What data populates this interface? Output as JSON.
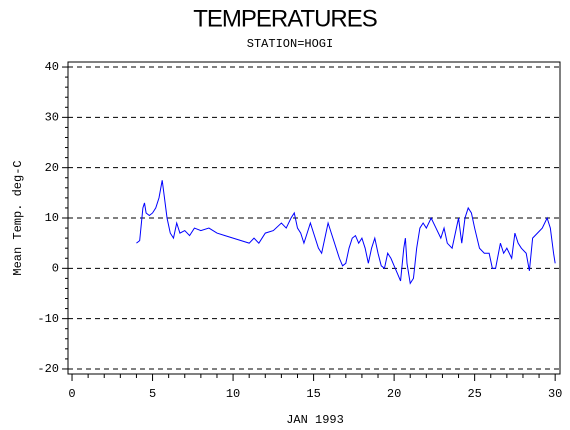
{
  "chart_data": {
    "type": "line",
    "title": "TEMPERATURES",
    "subtitle": "STATION=HOGI",
    "x_label": "JAN 1993",
    "y_label": "Mean Temp. deg-C",
    "xlim": [
      -0.25,
      30.3
    ],
    "ylim": [
      -21,
      41
    ],
    "xticks": [
      0,
      5,
      10,
      15,
      20,
      25,
      30
    ],
    "yticks": [
      -20,
      -10,
      0,
      10,
      20,
      30,
      40
    ],
    "xminorticks": [
      1,
      2,
      3,
      4,
      6,
      7,
      8,
      9,
      11,
      12,
      13,
      14,
      16,
      17,
      18,
      19,
      21,
      22,
      23,
      24,
      26,
      27,
      28,
      29
    ],
    "yminorticks": [
      -18,
      -16,
      -14,
      -12,
      -8,
      -6,
      -4,
      -2,
      2,
      4,
      6,
      8,
      12,
      14,
      16,
      18,
      22,
      24,
      26,
      28,
      32,
      34,
      36,
      38
    ],
    "grid": true,
    "series": [
      {
        "name": "Mean Temp",
        "color": "#0000ff",
        "x": [
          4.0,
          4.2,
          4.4,
          4.5,
          4.6,
          4.8,
          5.0,
          5.2,
          5.4,
          5.6,
          5.7,
          5.9,
          6.1,
          6.3,
          6.5,
          6.7,
          7.0,
          7.3,
          7.6,
          8.0,
          8.5,
          9.0,
          9.5,
          10.0,
          10.5,
          11.0,
          11.3,
          11.6,
          12.0,
          12.5,
          13.0,
          13.3,
          13.6,
          13.8,
          14.0,
          14.2,
          14.4,
          14.6,
          14.8,
          15.0,
          15.3,
          15.5,
          15.7,
          15.9,
          16.1,
          16.3,
          16.6,
          16.8,
          17.0,
          17.2,
          17.4,
          17.6,
          17.8,
          18.0,
          18.2,
          18.4,
          18.6,
          18.8,
          19.0,
          19.2,
          19.4,
          19.6,
          19.8,
          20.0,
          20.2,
          20.4,
          20.6,
          20.7,
          20.8,
          21.0,
          21.2,
          21.4,
          21.6,
          21.8,
          22.0,
          22.3,
          22.6,
          22.9,
          23.1,
          23.3,
          23.6,
          23.8,
          24.0,
          24.2,
          24.4,
          24.6,
          24.8,
          25.0,
          25.3,
          25.6,
          25.9,
          26.1,
          26.3,
          26.6,
          26.8,
          27.0,
          27.3,
          27.5,
          27.7,
          27.9,
          28.2,
          28.4,
          28.6,
          28.9,
          29.2,
          29.5,
          29.7,
          29.9,
          30.0
        ],
        "values": [
          5,
          5.5,
          12,
          13,
          11,
          10.5,
          11,
          12,
          14,
          17.5,
          15,
          10,
          7,
          6,
          9,
          7,
          7.5,
          6.5,
          8,
          7.5,
          8,
          7,
          6.5,
          6,
          5.5,
          5,
          6,
          5,
          7,
          7.5,
          9,
          8,
          10,
          11,
          8,
          7,
          5,
          7,
          9,
          7,
          4,
          3,
          6,
          9,
          7,
          5,
          2,
          0.5,
          1,
          4,
          6,
          6.5,
          5,
          6,
          4,
          1,
          4,
          6,
          3,
          0.5,
          0,
          3,
          2,
          0.5,
          -1,
          -2.5,
          4,
          6,
          1,
          -3,
          -2,
          4,
          8,
          9,
          8,
          10,
          8,
          6,
          8,
          5,
          4,
          7,
          10,
          5,
          10,
          12,
          11,
          8,
          4,
          3,
          3,
          0,
          0,
          5,
          3,
          4,
          2,
          7,
          5,
          4,
          3,
          -0.5,
          6,
          7,
          8,
          10,
          8,
          3,
          1
        ]
      }
    ]
  }
}
